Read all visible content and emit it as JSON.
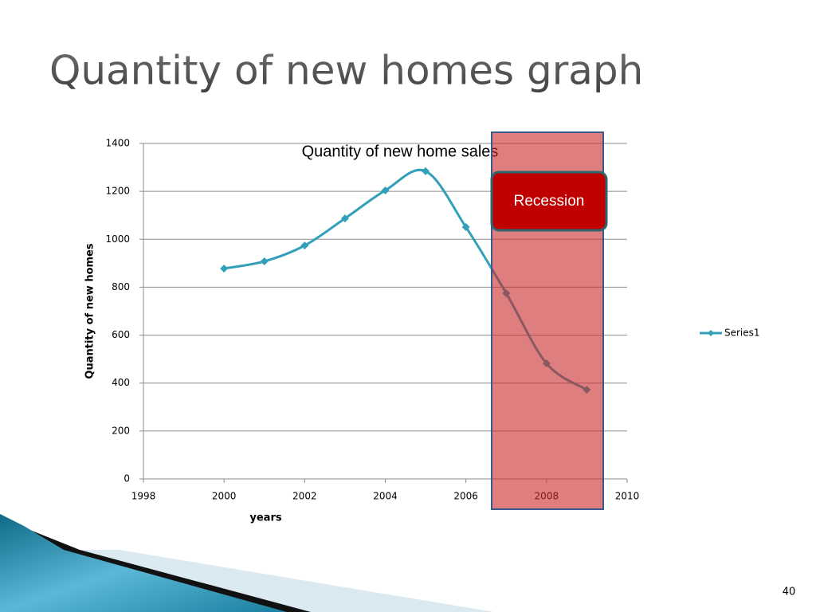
{
  "slide_title": "Quantity of new homes graph",
  "page_number": "40",
  "chart_data": {
    "type": "line",
    "title": "Quantity of new home sales",
    "x_label": "years",
    "y_label": "Quantity of new homes",
    "x": [
      2000,
      2001,
      2002,
      2003,
      2004,
      2005,
      2006,
      2007,
      2008,
      2009
    ],
    "series": [
      {
        "name": "Series1",
        "color": "#31a0b8",
        "values": [
          878,
          908,
          974,
          1087,
          1204,
          1284,
          1051,
          775,
          482,
          372
        ]
      }
    ],
    "xlim": [
      1998,
      2010
    ],
    "xticks": [
      1998,
      2000,
      2002,
      2004,
      2006,
      2008,
      2010
    ],
    "ylim": [
      0,
      1400
    ],
    "yticks": [
      0,
      200,
      400,
      600,
      800,
      1000,
      1200,
      1400
    ],
    "grid": true,
    "legend": "right",
    "annotation": "Recession"
  }
}
